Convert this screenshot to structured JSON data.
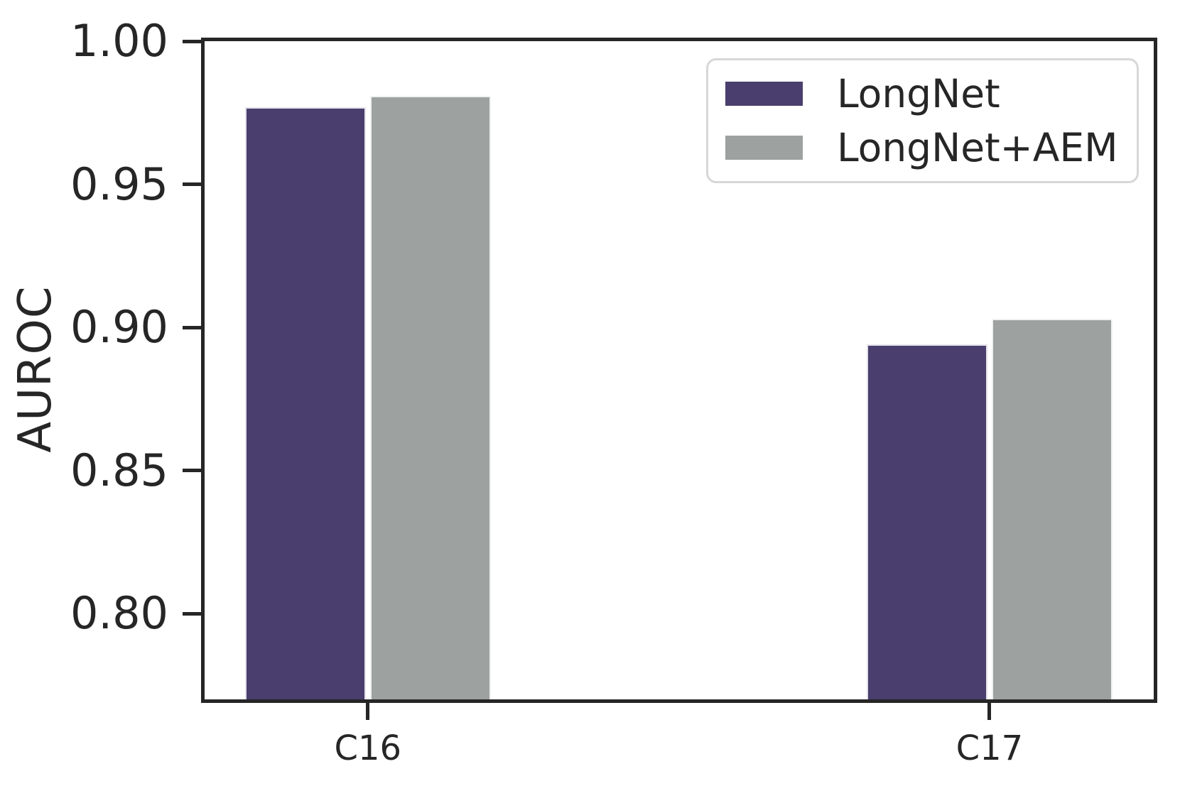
{
  "colors": {
    "background": "#ffffff",
    "axis": "#262626",
    "text": "#262626",
    "legend_border": "#d7d7d7",
    "bar_edge": "rgba(255,255,255,0.85)"
  },
  "chart_data": {
    "type": "bar",
    "title": "",
    "xlabel": "",
    "ylabel": "AUROC",
    "categories": [
      "C16",
      "C17"
    ],
    "series": [
      {
        "name": "LongNet",
        "color": "#493e6d",
        "values": [
          0.977,
          0.894
        ]
      },
      {
        "name": "LongNet+AEM",
        "color": "#9da1a0",
        "values": [
          0.981,
          0.903
        ]
      }
    ],
    "ylim": [
      0.77,
      1.0
    ],
    "yticks": [
      1.0,
      0.95,
      0.9,
      0.85,
      0.8
    ],
    "ytick_labels": [
      "1.00",
      "0.95",
      "0.90",
      "0.85",
      "0.80"
    ],
    "grid": false,
    "legend_position": "upper right"
  }
}
